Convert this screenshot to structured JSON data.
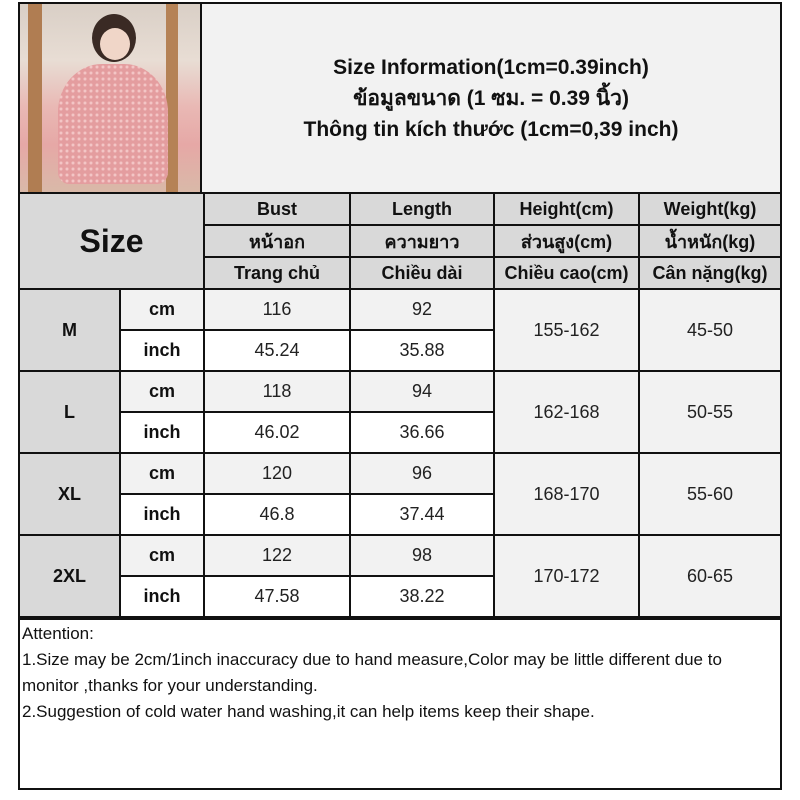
{
  "title": {
    "line1": "Size Information(1cm=0.39inch)",
    "line2": "ข้อมูลขนาด (1 ซม. = 0.39 นิ้ว)",
    "line3": "Thông tin kích thước (1cm=0,39 inch)"
  },
  "header": {
    "size_label": "Size",
    "columns": [
      {
        "en": "Bust",
        "th": "หน้าอก",
        "vi": "Trang chủ"
      },
      {
        "en": "Length",
        "th": "ความยาว",
        "vi": "Chiều dài"
      },
      {
        "en": "Height(cm)",
        "th": "ส่วนสูง(cm)",
        "vi": "Chiều cao(cm)"
      },
      {
        "en": "Weight(kg)",
        "th": "น้ำหนัก(kg)",
        "vi": "Cân nặng(kg)"
      }
    ]
  },
  "rows": [
    {
      "size": "M",
      "cm_label": "cm",
      "inch_label": "inch",
      "bust_cm": "116",
      "length_cm": "92",
      "bust_inch": "45.24",
      "length_inch": "35.88",
      "height": "155-162",
      "weight": "45-50"
    },
    {
      "size": "L",
      "cm_label": "cm",
      "inch_label": "inch",
      "bust_cm": "118",
      "length_cm": "94",
      "bust_inch": "46.02",
      "length_inch": "36.66",
      "height": "162-168",
      "weight": "50-55"
    },
    {
      "size": "XL",
      "cm_label": "cm",
      "inch_label": "inch",
      "bust_cm": "120",
      "length_cm": "96",
      "bust_inch": "46.8",
      "length_inch": "37.44",
      "height": "168-170",
      "weight": "55-60"
    },
    {
      "size": "2XL",
      "cm_label": "cm",
      "inch_label": "inch",
      "bust_cm": "122",
      "length_cm": "98",
      "bust_inch": "47.58",
      "length_inch": "38.22",
      "height": "170-172",
      "weight": "60-65"
    }
  ],
  "attention": {
    "heading": "Attention:",
    "note1": "1.Size may be 2cm/1inch inaccuracy due to hand measure,Color may be little different due to monitor ,thanks for your understanding.",
    "note2": "2.Suggestion of cold water hand washing,it can help items keep their shape."
  }
}
